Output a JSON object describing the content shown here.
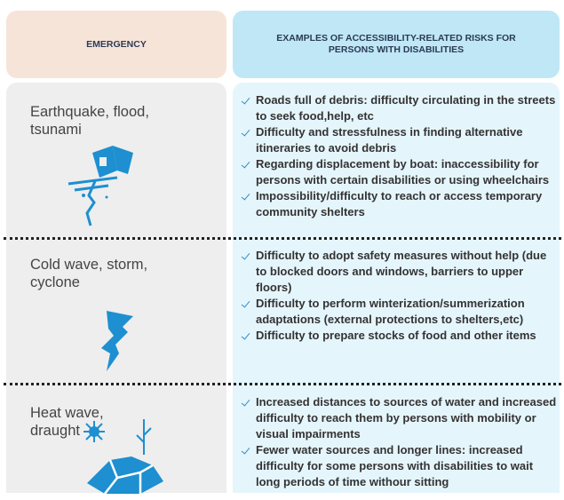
{
  "header": {
    "columns": [
      "EMERGENCY",
      "EXAMPLES OF ACCESSIBILITY-RELATED RISKS FOR PERSONS WITH DISABILITIES"
    ]
  },
  "rows": [
    {
      "emergency": "Earthquake, flood, tsunami",
      "risks": [
        "Roads full of debris: difficulty circulating in the streets to seek food,help, etc",
        "Difficulty and stressfulness in finding alternative itineraries to avoid debris",
        "Regarding displacement by boat: inaccessibility for persons with certain disabilities or using wheelchairs",
        "Impossibility/difficulty to reach or access temporary community shelters"
      ]
    },
    {
      "emergency": "Cold wave, storm, cyclone",
      "risks": [
        "Difficulty to adopt  safety measures without help (due to blocked doors and windows, barriers to upper floors)",
        "Difficulty to perform winterization/summerization adaptations (external protections to shelters,etc)",
        "Difficulty to prepare stocks of food and other items"
      ]
    },
    {
      "emergency": "Heat wave, draught",
      "risks": [
        "Increased distances to sources of water and increased difficulty to reach them by persons with mobility or visual impairments",
        "Fewer water sources and longer lines: increased difficulty for some persons with disabilities to wait long periods of time withour sitting"
      ]
    }
  ]
}
